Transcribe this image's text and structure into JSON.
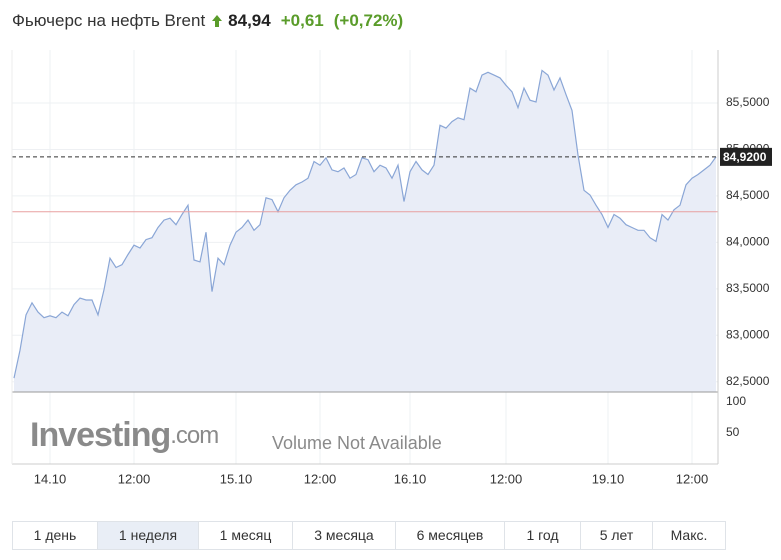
{
  "header": {
    "title": "Фьючерс на нефть Brent",
    "price": "84,94",
    "change": "+0,61",
    "change_pct": "(+0,72%)"
  },
  "chart_data": {
    "type": "area",
    "categories": [
      null,
      null,
      null,
      null,
      null,
      null,
      "14.10",
      null,
      null,
      null,
      null,
      null,
      null,
      null,
      null,
      null,
      null,
      null,
      null,
      null,
      "12:00",
      null,
      null,
      null,
      null,
      null,
      null,
      null,
      null,
      null,
      null,
      null,
      null,
      null,
      null,
      null,
      null,
      "15.10",
      null,
      null,
      null,
      null,
      null,
      null,
      null,
      null,
      null,
      null,
      null,
      null,
      null,
      "12:00",
      null,
      null,
      null,
      null,
      null,
      null,
      null,
      null,
      null,
      null,
      null,
      null,
      null,
      null,
      "16.10",
      null,
      null,
      null,
      null,
      null,
      null,
      null,
      null,
      null,
      null,
      null,
      null,
      null,
      null,
      null,
      "12:00",
      null,
      null,
      null,
      null,
      null,
      null,
      null,
      null,
      null,
      null,
      null,
      null,
      null,
      null,
      null,
      null,
      "19.10",
      null,
      null,
      null,
      null,
      null,
      null,
      null,
      null,
      null,
      null,
      null,
      null,
      null,
      "12:00",
      null,
      null,
      null,
      null
    ],
    "series": [
      {
        "color": "#8aa6d6",
        "values": [
          82.54,
          82.84,
          83.22,
          83.35,
          83.25,
          83.19,
          83.21,
          83.19,
          83.25,
          83.21,
          83.33,
          83.4,
          83.38,
          83.38,
          83.22,
          83.49,
          83.83,
          83.73,
          83.76,
          83.87,
          83.97,
          83.94,
          84.03,
          84.05,
          84.16,
          84.24,
          84.26,
          84.19,
          84.3,
          84.4,
          83.81,
          83.79,
          84.11,
          83.47,
          83.83,
          83.76,
          83.97,
          84.11,
          84.16,
          84.24,
          84.13,
          84.19,
          84.48,
          84.46,
          84.33,
          84.48,
          84.56,
          84.62,
          84.65,
          84.69,
          84.87,
          84.83,
          84.91,
          84.78,
          84.76,
          84.8,
          84.69,
          84.73,
          84.91,
          84.89,
          84.76,
          84.83,
          84.8,
          84.69,
          84.83,
          84.44,
          84.76,
          84.87,
          84.78,
          84.73,
          84.83,
          85.26,
          85.23,
          85.3,
          85.34,
          85.32,
          85.66,
          85.62,
          85.8,
          85.83,
          85.8,
          85.77,
          85.69,
          85.62,
          85.45,
          85.66,
          85.53,
          85.51,
          85.85,
          85.8,
          85.64,
          85.77,
          85.59,
          85.42,
          84.94,
          84.56,
          84.51,
          84.4,
          84.3,
          84.16,
          84.3,
          84.26,
          84.19,
          84.16,
          84.13,
          84.13,
          84.05,
          84.01,
          84.3,
          84.24,
          84.35,
          84.4,
          84.62,
          84.69,
          84.73,
          84.78,
          84.83,
          84.92
        ]
      }
    ],
    "area_color": "#e9edf7",
    "ylim": [
      82.39,
      86.07
    ],
    "yticks": [
      {
        "value": 82.5,
        "label": "82,5000"
      },
      {
        "value": 83,
        "label": "83,0000"
      },
      {
        "value": 83.5,
        "label": "83,5000"
      },
      {
        "value": 84,
        "label": "84,0000"
      },
      {
        "value": 84.5,
        "label": "84,5000"
      },
      {
        "value": 85,
        "label": "85,0000"
      },
      {
        "value": 85.5,
        "label": "85,5000"
      }
    ],
    "grid": true,
    "last_price": {
      "value": 84.92,
      "label": "84,9200"
    },
    "previous_close": 84.33,
    "previous_close_color": "#e8a0a0",
    "volume_ylim": [
      0,
      116
    ],
    "volume_yticks": [
      100,
      50
    ],
    "volume_note": "Volume Not Available",
    "watermark": "Investing",
    "watermark_suffix": ".com"
  },
  "ranges": {
    "buttons": [
      "1 день",
      "1 неделя",
      "1 месяц",
      "3 месяца",
      "6 месяцев",
      "1 год",
      "5 лет",
      "Макс."
    ],
    "active": 1
  }
}
